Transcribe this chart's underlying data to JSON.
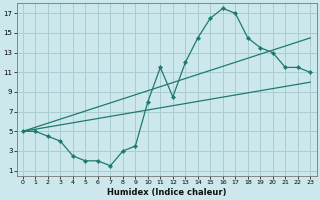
{
  "xlabel": "Humidex (Indice chaleur)",
  "bg_color": "#cde8ec",
  "grid_color": "#a8cdd2",
  "line_color": "#1e7a70",
  "xlim": [
    -0.5,
    23.5
  ],
  "ylim": [
    0.5,
    18
  ],
  "xticks": [
    0,
    1,
    2,
    3,
    4,
    5,
    6,
    7,
    8,
    9,
    10,
    11,
    12,
    13,
    14,
    15,
    16,
    17,
    18,
    19,
    20,
    21,
    22,
    23
  ],
  "yticks": [
    1,
    3,
    5,
    7,
    9,
    11,
    13,
    15,
    17
  ],
  "line1_x": [
    0,
    1,
    2,
    3,
    4,
    5,
    6,
    7,
    8,
    9,
    10,
    11,
    12,
    13,
    14,
    15,
    16,
    17,
    18,
    19,
    20,
    21,
    22,
    23
  ],
  "line1_y": [
    5,
    5,
    4.5,
    4,
    2.5,
    2,
    2,
    1.5,
    3,
    3.5,
    8,
    11.5,
    8.5,
    12,
    14.5,
    16.5,
    17.5,
    17,
    14.5,
    13.5,
    13,
    11.5,
    11.5,
    11
  ],
  "line2_x": [
    0,
    23
  ],
  "line2_y": [
    5,
    10
  ],
  "line3_x": [
    0,
    23
  ],
  "line3_y": [
    5,
    14.5
  ]
}
